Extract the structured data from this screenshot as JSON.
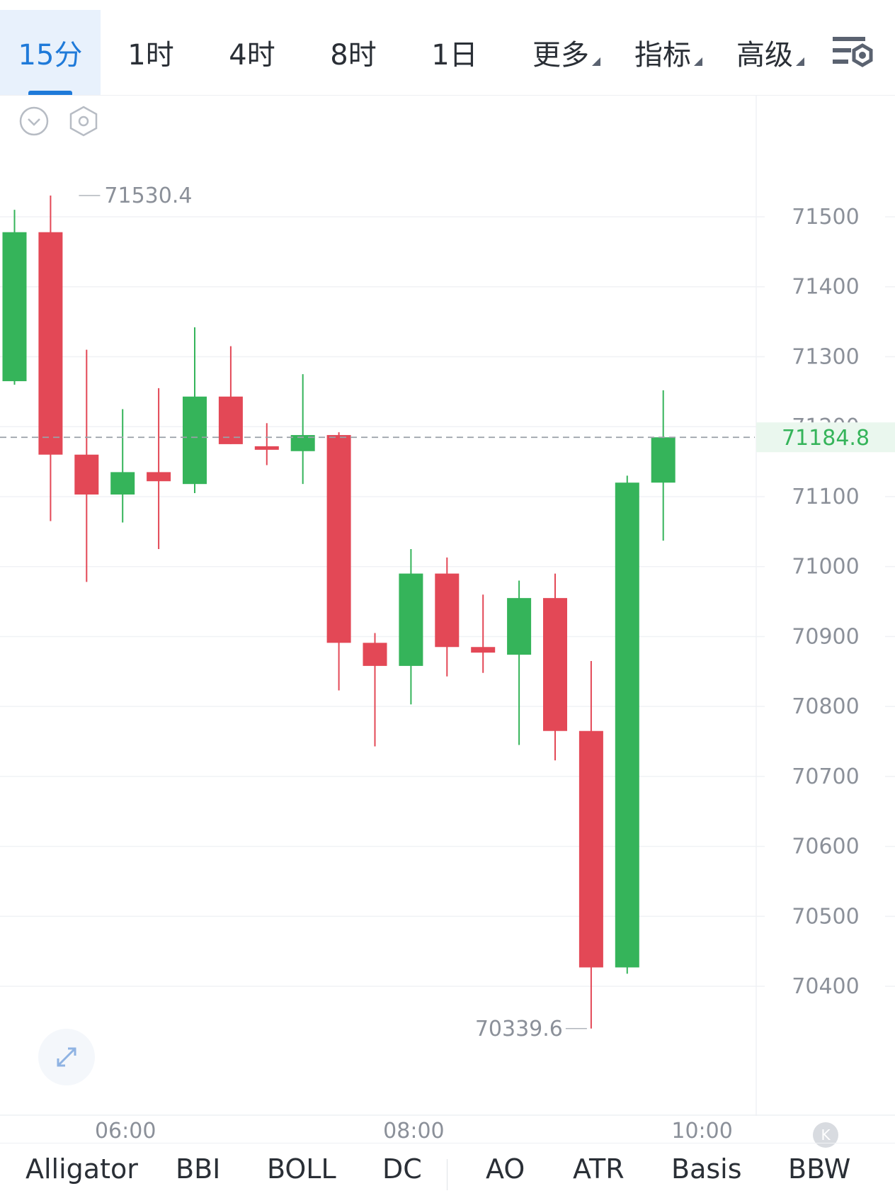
{
  "tabs": [
    {
      "label": "15分",
      "active": true
    },
    {
      "label": "1时",
      "active": false
    },
    {
      "label": "4时",
      "active": false
    },
    {
      "label": "8时",
      "active": false
    },
    {
      "label": "1日",
      "active": false
    },
    {
      "label": "更多",
      "active": false,
      "dropdown": true
    },
    {
      "label": "指标",
      "active": false,
      "dropdown": true
    },
    {
      "label": "高级",
      "active": false,
      "dropdown": true
    }
  ],
  "icons": {
    "settings": "chart-settings-icon",
    "collapse": "chevron-down-circle-icon",
    "hex": "hexagon-settings-icon",
    "expand": "expand-arrows-icon",
    "k_badge": "K"
  },
  "colors": {
    "up": "#35b45a",
    "down": "#e34856",
    "accent": "#1f7ad9",
    "last_price_bg": "#eaf7ee"
  },
  "chart_data": {
    "type": "candlestick",
    "ylim": [
      70280,
      71640
    ],
    "y_ticks": [
      71500,
      71400,
      71300,
      71200,
      71100,
      71000,
      70900,
      70800,
      70700,
      70600,
      70500,
      70400
    ],
    "y_tick_labels": [
      "71500",
      "71400",
      "71300",
      "71200",
      "71100",
      "71000",
      "70900",
      "70800",
      "70700",
      "70600",
      "70500",
      "70400"
    ],
    "x_ticks": [
      {
        "label": "06:00",
        "index": 3
      },
      {
        "label": "08:00",
        "index": 11
      },
      {
        "label": "10:00",
        "index": 19
      }
    ],
    "last_price": 71184.8,
    "last_price_label": "71184.8",
    "high_marker": {
      "value": 71530.4,
      "label": "71530.4",
      "index": 1
    },
    "low_marker": {
      "value": 70339.6,
      "label": "70339.6",
      "index": 16
    },
    "candles": [
      {
        "o": 71265,
        "h": 71510,
        "l": 71260,
        "c": 71478
      },
      {
        "o": 71478,
        "h": 71530.4,
        "l": 71065,
        "c": 71160
      },
      {
        "o": 71160,
        "h": 71310,
        "l": 70978,
        "c": 71103
      },
      {
        "o": 71103,
        "h": 71225,
        "l": 71063,
        "c": 71135
      },
      {
        "o": 71135,
        "h": 71255,
        "l": 71025,
        "c": 71122
      },
      {
        "o": 71118,
        "h": 71342,
        "l": 71105,
        "c": 71243
      },
      {
        "o": 71243,
        "h": 71315,
        "l": 71175,
        "c": 71175
      },
      {
        "o": 71172,
        "h": 71205,
        "l": 71145,
        "c": 71168
      },
      {
        "o": 71165,
        "h": 71275,
        "l": 71118,
        "c": 71188
      },
      {
        "o": 71188,
        "h": 71192,
        "l": 70823,
        "c": 70891
      },
      {
        "o": 70891,
        "h": 70905,
        "l": 70743,
        "c": 70858
      },
      {
        "o": 70858,
        "h": 71025,
        "l": 70803,
        "c": 70990
      },
      {
        "o": 70990,
        "h": 71013,
        "l": 70843,
        "c": 70885
      },
      {
        "o": 70885,
        "h": 70960,
        "l": 70848,
        "c": 70877
      },
      {
        "o": 70874,
        "h": 70980,
        "l": 70745,
        "c": 70955
      },
      {
        "o": 70955,
        "h": 70990,
        "l": 70723,
        "c": 70765
      },
      {
        "o": 70765,
        "h": 70865,
        "l": 70339.6,
        "c": 70427
      },
      {
        "o": 70427,
        "h": 71130,
        "l": 70418,
        "c": 71120
      },
      {
        "o": 71120,
        "h": 71252,
        "l": 71037,
        "c": 71184.8
      }
    ]
  },
  "indicators": [
    "Alligator",
    "BBI",
    "BOLL",
    "DC",
    "AO",
    "ATR",
    "Basis",
    "BBW"
  ]
}
